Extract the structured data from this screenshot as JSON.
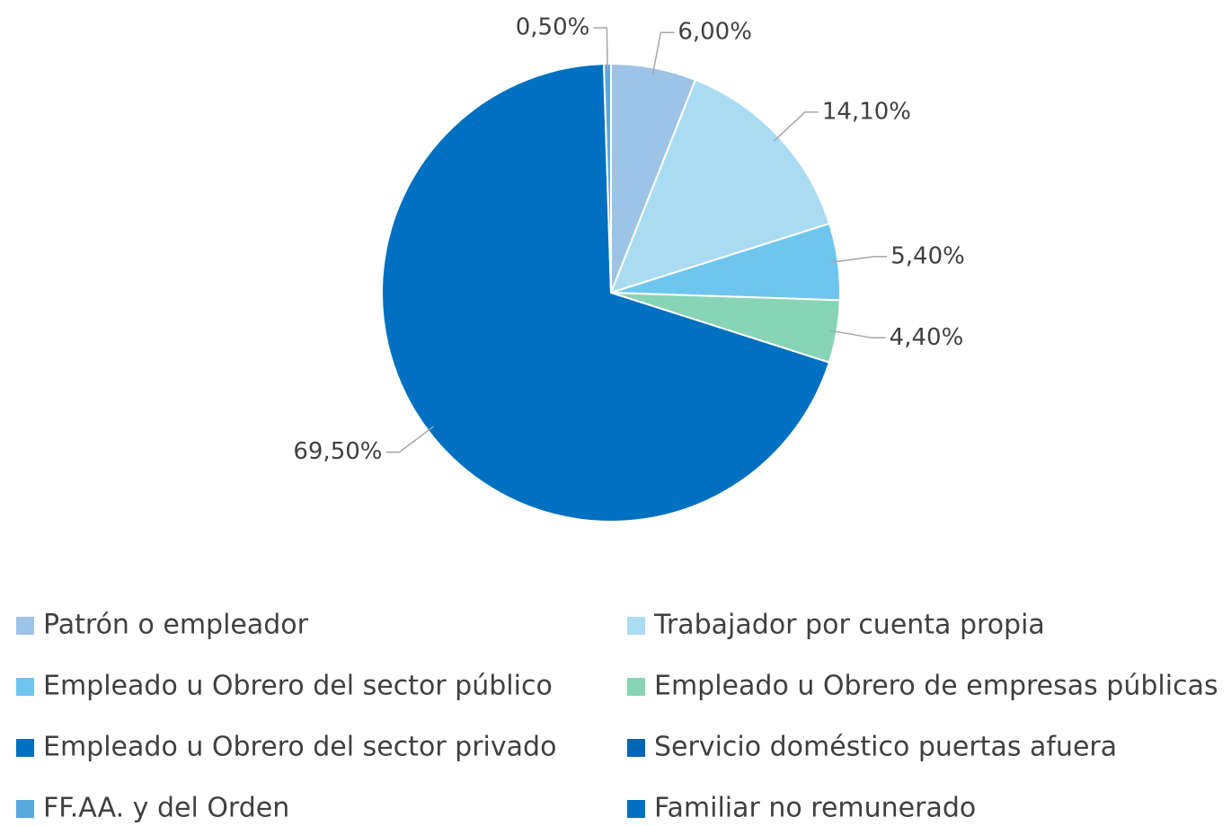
{
  "chart_data": {
    "type": "pie",
    "categories": [
      "Patrón o empleador",
      "Trabajador por cuenta propia",
      "Empleado u Obrero del sector público",
      "Empleado u Obrero de empresas públicas",
      "Empleado u Obrero del sector privado",
      "Servicio doméstico puertas afuera",
      "FF.AA. y del Orden",
      "Familiar no remunerado"
    ],
    "values": [
      6.0,
      14.1,
      5.4,
      4.4,
      69.5,
      0,
      0.5,
      0
    ],
    "value_labels": [
      "6,00%",
      "14,10%",
      "5,40%",
      "4,40%",
      "69,50%",
      null,
      "0,50%",
      null
    ],
    "colors": [
      "#9dc3e6",
      "#a9dcf3",
      "#6ec6ee",
      "#87d4b7",
      "#0070c0",
      "#0066b3",
      "#5aa8e0",
      "#0070c0"
    ],
    "legend": "bottom"
  }
}
